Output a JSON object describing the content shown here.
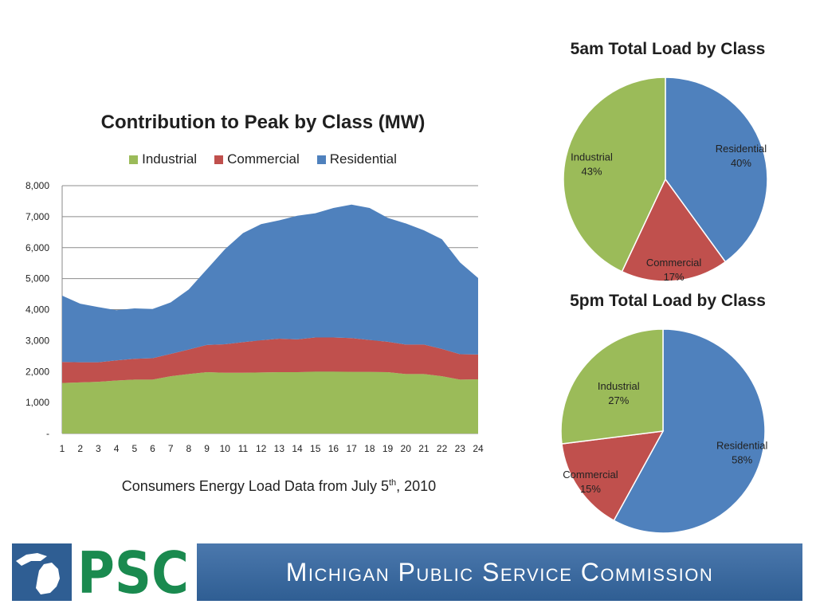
{
  "chart_data": [
    {
      "type": "area",
      "stacked": true,
      "title": "Contribution to Peak by Class (MW)",
      "x": [
        1,
        2,
        3,
        4,
        5,
        6,
        7,
        8,
        9,
        10,
        11,
        12,
        13,
        14,
        15,
        16,
        17,
        18,
        19,
        20,
        21,
        22,
        23,
        24
      ],
      "xtick_labels": [
        "1",
        "2",
        "3",
        "4",
        "5",
        "6",
        "7",
        "8",
        "9",
        "10",
        "11",
        "12",
        "13",
        "14",
        "15",
        "16",
        "17",
        "18",
        "19",
        "20",
        "21",
        "22",
        "23",
        "24"
      ],
      "ytick_labels": [
        "-",
        "1,000",
        "2,000",
        "3,000",
        "4,000",
        "5,000",
        "6,000",
        "7,000",
        "8,000"
      ],
      "ylim": [
        0,
        8000
      ],
      "legend_position": "top",
      "series": [
        {
          "name": "Industrial",
          "color": "#9bbb59",
          "values": [
            1630,
            1650,
            1670,
            1710,
            1740,
            1740,
            1850,
            1920,
            1980,
            1960,
            1960,
            1970,
            1980,
            1980,
            2000,
            2000,
            1990,
            1990,
            1980,
            1920,
            1920,
            1850,
            1740,
            1750
          ]
        },
        {
          "name": "Commercial",
          "color": "#c0504d",
          "values": [
            680,
            650,
            630,
            650,
            670,
            690,
            720,
            790,
            880,
            920,
            990,
            1040,
            1080,
            1060,
            1100,
            1100,
            1090,
            1030,
            980,
            950,
            950,
            880,
            820,
            800
          ]
        },
        {
          "name": "Residential",
          "color": "#4f81bd",
          "values": [
            2140,
            1890,
            1780,
            1620,
            1630,
            1590,
            1660,
            1940,
            2440,
            3070,
            3520,
            3750,
            3820,
            3990,
            4010,
            4180,
            4310,
            4260,
            4000,
            3910,
            3690,
            3540,
            2960,
            2470
          ]
        }
      ]
    },
    {
      "type": "pie",
      "title": "5am Total Load by Class",
      "slices": [
        {
          "name": "Residential",
          "value": 40,
          "label": "Residential",
          "pct": "40%",
          "color": "#4f81bd"
        },
        {
          "name": "Commercial",
          "value": 17,
          "label": "Commercial",
          "pct": "17%",
          "color": "#c0504d"
        },
        {
          "name": "Industrial",
          "value": 43,
          "label": "Industrial",
          "pct": "43%",
          "color": "#9bbb59"
        }
      ]
    },
    {
      "type": "pie",
      "title": "5pm Total Load by Class",
      "slices": [
        {
          "name": "Residential",
          "value": 58,
          "label": "Residential",
          "pct": "58%",
          "color": "#4f81bd"
        },
        {
          "name": "Commercial",
          "value": 15,
          "label": "Commercial",
          "pct": "15%",
          "color": "#c0504d"
        },
        {
          "name": "Industrial",
          "value": 27,
          "label": "Industrial",
          "pct": "27%",
          "color": "#9bbb59"
        }
      ]
    }
  ],
  "caption": {
    "text_before": "Consumers Energy Load Data from July 5",
    "superscript": "th",
    "text_after": ", 2010"
  },
  "footer": {
    "title": "Michigan Public Service Commission",
    "logo_text": "PSC"
  }
}
